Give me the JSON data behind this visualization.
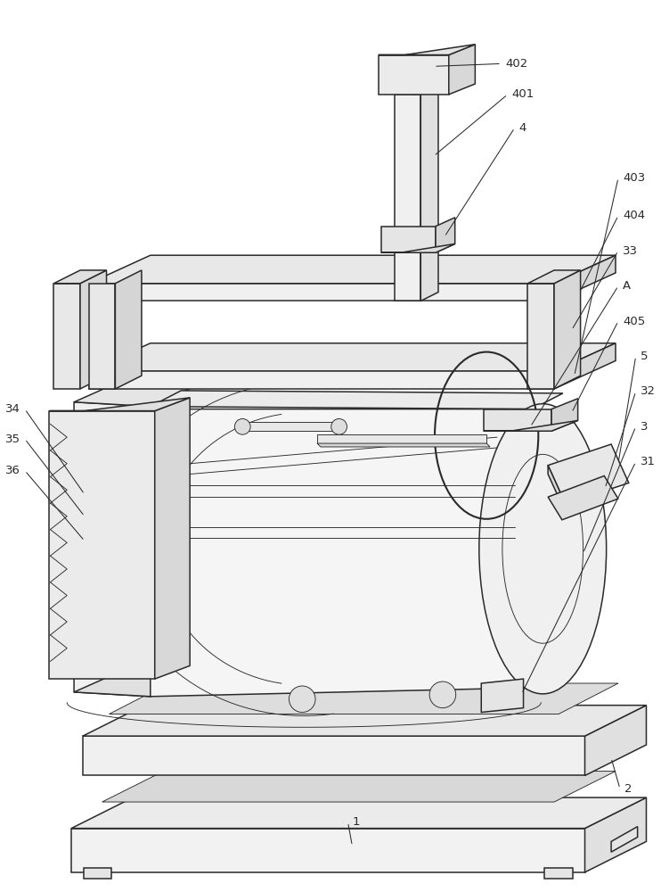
{
  "bg_color": "#ffffff",
  "lc": "#2a2a2a",
  "lw": 1.1,
  "tlw": 0.65,
  "fs": 9.5,
  "fig_width": 7.42,
  "fig_height": 10.0
}
